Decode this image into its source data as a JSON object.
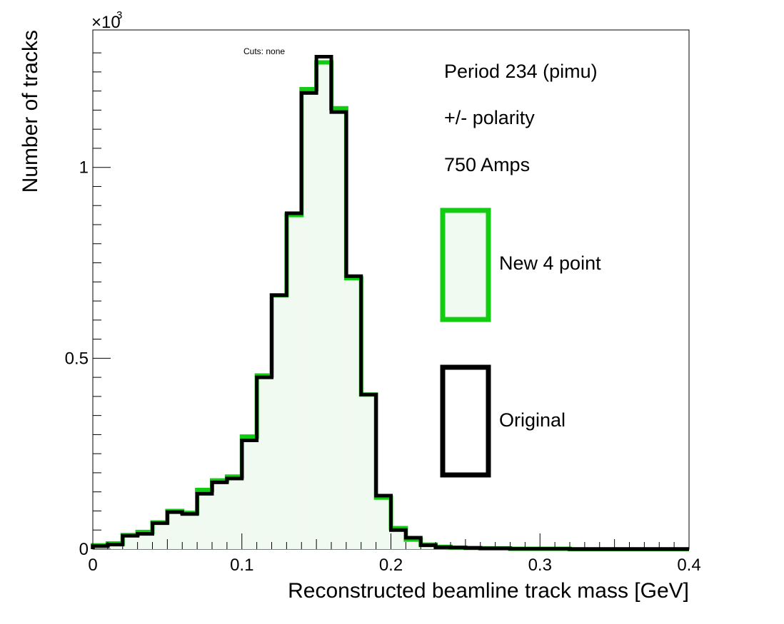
{
  "chart_data": {
    "type": "histogram",
    "xlabel": "Reconstructed beamline track mass [GeV]",
    "ylabel": "Number of tracks",
    "y_multiplier_label": "×10",
    "y_multiplier_exp": "3",
    "cuts_label": "Cuts: none",
    "xlim": [
      0,
      0.4
    ],
    "ylim": [
      0,
      1.36
    ],
    "x_ticks": [
      {
        "value": 0,
        "label": "0"
      },
      {
        "value": 0.1,
        "label": "0.1"
      },
      {
        "value": 0.2,
        "label": "0.2"
      },
      {
        "value": 0.3,
        "label": "0.3"
      },
      {
        "value": 0.4,
        "label": "0.4"
      }
    ],
    "y_ticks": [
      {
        "value": 0,
        "label": "0"
      },
      {
        "value": 0.5,
        "label": "0.5"
      },
      {
        "value": 1,
        "label": "1"
      }
    ],
    "bin_edges": [
      0,
      0.01,
      0.02,
      0.03,
      0.04,
      0.05,
      0.06,
      0.07,
      0.08,
      0.09,
      0.1,
      0.11,
      0.12,
      0.13,
      0.14,
      0.15,
      0.16,
      0.17,
      0.18,
      0.19,
      0.2,
      0.21,
      0.22,
      0.23,
      0.24,
      0.25,
      0.26,
      0.27,
      0.28,
      0.29,
      0.3,
      0.31,
      0.32,
      0.33,
      0.34,
      0.35,
      0.36,
      0.37,
      0.38,
      0.39,
      0.4
    ],
    "series": [
      {
        "name": "New 4 point",
        "color": "#11cc11",
        "fill": "#f1faf1",
        "values": [
          0.01,
          0.015,
          0.037,
          0.045,
          0.07,
          0.1,
          0.095,
          0.155,
          0.18,
          0.19,
          0.295,
          0.455,
          0.665,
          0.875,
          1.205,
          1.275,
          1.155,
          0.71,
          0.405,
          0.135,
          0.055,
          0.025,
          0.012,
          0.006,
          0.004,
          0.003,
          0.002,
          0.002,
          0.001,
          0.001,
          0.001,
          0.001,
          0.0,
          0.0,
          0.0,
          0.0,
          0.0,
          0.0,
          0.0,
          0.0
        ]
      },
      {
        "name": "Original",
        "color": "#000000",
        "fill": "none",
        "values": [
          0.008,
          0.012,
          0.035,
          0.04,
          0.068,
          0.097,
          0.092,
          0.145,
          0.175,
          0.185,
          0.285,
          0.45,
          0.665,
          0.88,
          1.195,
          1.29,
          1.145,
          0.715,
          0.405,
          0.14,
          0.05,
          0.03,
          0.01,
          0.005,
          0.004,
          0.003,
          0.002,
          0.002,
          0.001,
          0.001,
          0.001,
          0.001,
          0.0,
          0.0,
          0.0,
          0.0,
          0.0,
          0.0,
          0.0,
          0.0
        ]
      }
    ],
    "annotations": [
      "Period 234 (pimu)",
      "+/- polarity",
      "750 Amps"
    ],
    "legend": {
      "position": "right",
      "entries": [
        "New 4 point",
        "Original"
      ]
    }
  }
}
